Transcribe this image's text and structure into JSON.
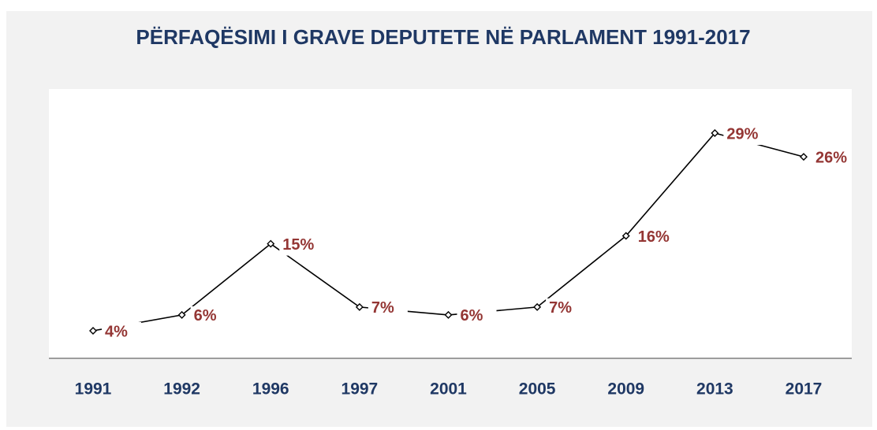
{
  "chart_data": {
    "type": "line",
    "title": "PËRFAQËSIMI I GRAVE DEPUTETE NË PARLAMENT 1991-2017",
    "categories": [
      "1991",
      "1992",
      "1996",
      "1997",
      "2001",
      "2005",
      "2009",
      "2013",
      "2017"
    ],
    "values": [
      4,
      6,
      15,
      7,
      6,
      7,
      16,
      29,
      26
    ],
    "value_labels": [
      "4%",
      "6%",
      "15%",
      "7%",
      "6%",
      "7%",
      "16%",
      "29%",
      "26%"
    ],
    "color": "#000000",
    "label_color": "#943634",
    "title_color": "#1f3864"
  }
}
